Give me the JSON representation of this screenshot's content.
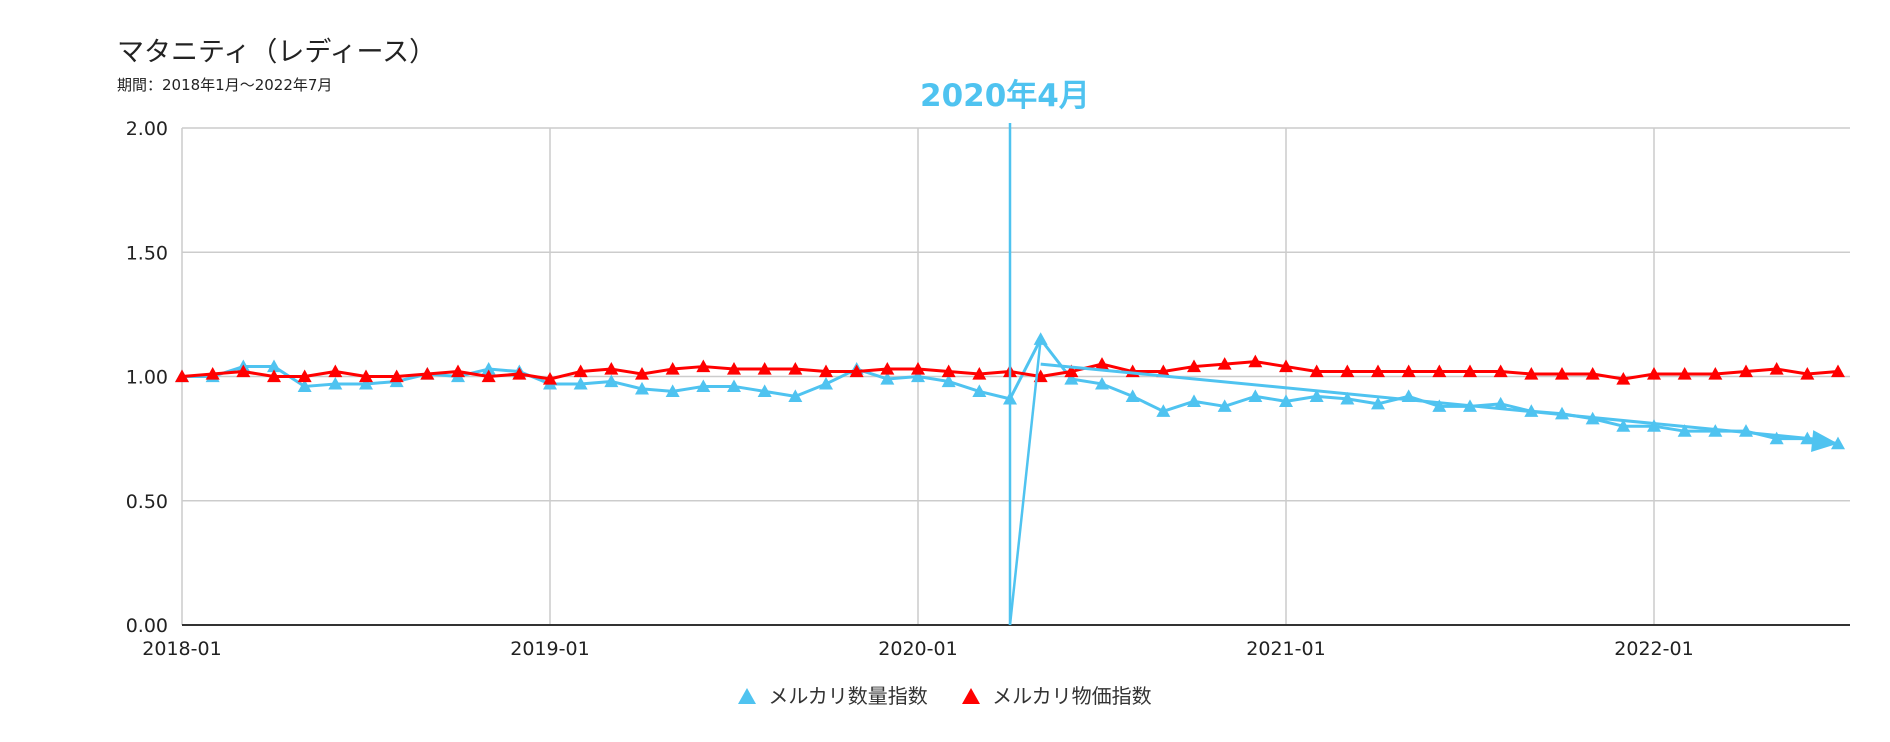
{
  "chart_data": {
    "type": "line",
    "title": "マタニティ（レディース）",
    "subtitle": "期間：2018年1月〜2022年7月",
    "annotation": {
      "label": "2020年4月",
      "x": "2020-04",
      "color": "#4fc3f0"
    },
    "ylim": [
      0,
      2
    ],
    "y_ticks": [
      "0.00",
      "0.50",
      "1.00",
      "1.50",
      "2.00"
    ],
    "x_ticks": [
      "2018-01",
      "2019-01",
      "2020-01",
      "2021-01",
      "2022-01"
    ],
    "grid": true,
    "legend_position": "bottom",
    "x_start": "2018-01",
    "x_end": "2022-07",
    "series": [
      {
        "name": "メルカリ数量指数",
        "color": "#4fc3f0",
        "values": [
          1.0,
          1.0,
          1.04,
          1.04,
          0.96,
          0.97,
          0.97,
          0.98,
          1.01,
          1.0,
          1.03,
          1.02,
          0.97,
          0.97,
          0.98,
          0.95,
          0.94,
          0.96,
          0.96,
          0.94,
          0.92,
          0.97,
          1.03,
          0.99,
          1.0,
          0.98,
          0.94,
          0.91,
          1.15,
          0.99,
          0.97,
          0.92,
          0.86,
          0.9,
          0.88,
          0.92,
          0.9,
          0.92,
          0.91,
          0.89,
          0.92,
          0.88,
          0.88,
          0.89,
          0.86,
          0.85,
          0.83,
          0.8,
          0.8,
          0.78,
          0.78,
          0.78,
          0.75,
          0.75,
          0.73
        ]
      },
      {
        "name": "メルカリ物価指数",
        "color": "#ff0000",
        "values": [
          1.0,
          1.01,
          1.02,
          1.0,
          1.0,
          1.02,
          1.0,
          1.0,
          1.01,
          1.02,
          1.0,
          1.01,
          0.99,
          1.02,
          1.03,
          1.01,
          1.03,
          1.04,
          1.03,
          1.03,
          1.03,
          1.02,
          1.02,
          1.03,
          1.03,
          1.02,
          1.01,
          1.02,
          1.0,
          1.02,
          1.05,
          1.02,
          1.02,
          1.04,
          1.05,
          1.06,
          1.04,
          1.02,
          1.02,
          1.02,
          1.02,
          1.02,
          1.02,
          1.02,
          1.01,
          1.01,
          1.01,
          0.99,
          1.01,
          1.01,
          1.01,
          1.02,
          1.03,
          1.01,
          1.02
        ]
      }
    ],
    "trendline": {
      "series": "メルカリ数量指数",
      "from": [
        "2020-05",
        1.05
      ],
      "to": [
        "2022-07",
        0.73
      ]
    }
  }
}
